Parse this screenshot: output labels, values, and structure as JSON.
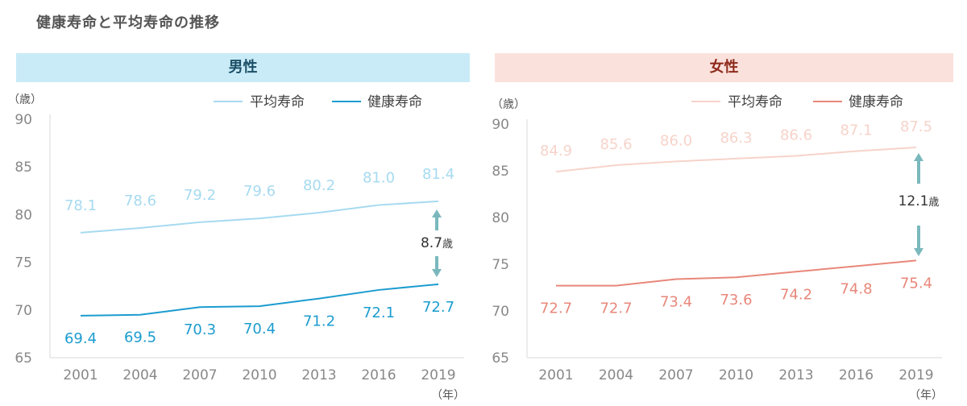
{
  "page": {
    "title": "健康寿命と平均寿命の推移"
  },
  "male_header": "男性",
  "female_header": "女性",
  "colors": {
    "male_avg": "#a6daf0",
    "male_health": "#1b9ccf",
    "female_avg": "#f7d3ca",
    "female_health": "#e8877a",
    "axis": "#d9d9d9",
    "tick_text": "#888888",
    "gap_arrow": "#7ab8bd"
  },
  "chart_data": [
    {
      "type": "line",
      "title": "男性",
      "ylabel": "（歳）",
      "xlabel": "（年）",
      "ylim": [
        65,
        90
      ],
      "yticks": [
        90,
        85,
        80,
        75,
        70,
        65
      ],
      "categories": [
        "2001",
        "2004",
        "2007",
        "2010",
        "2013",
        "2016",
        "2019"
      ],
      "series": [
        {
          "name": "平均寿命",
          "values": [
            78.1,
            78.6,
            79.2,
            79.6,
            80.2,
            81.0,
            81.4
          ],
          "labels": [
            "78.1",
            "78.6",
            "79.2",
            "79.6",
            "80.2",
            "81.0",
            "81.4"
          ]
        },
        {
          "name": "健康寿命",
          "values": [
            69.4,
            69.5,
            70.3,
            70.4,
            71.2,
            72.1,
            72.7
          ],
          "labels": [
            "69.4",
            "69.5",
            "70.3",
            "70.4",
            "71.2",
            "72.1",
            "72.7"
          ]
        }
      ],
      "annotation": {
        "value": "8.7",
        "unit": "歳"
      }
    },
    {
      "type": "line",
      "title": "女性",
      "ylabel": "（歳）",
      "xlabel": "（年）",
      "ylim": [
        65,
        90
      ],
      "yticks": [
        90,
        85,
        80,
        75,
        70,
        65
      ],
      "categories": [
        "2001",
        "2004",
        "2007",
        "2010",
        "2013",
        "2016",
        "2019"
      ],
      "series": [
        {
          "name": "平均寿命",
          "values": [
            84.9,
            85.6,
            86.0,
            86.3,
            86.6,
            87.1,
            87.5
          ],
          "labels": [
            "84.9",
            "85.6",
            "86.0",
            "86.3",
            "86.6",
            "87.1",
            "87.5"
          ]
        },
        {
          "name": "健康寿命",
          "values": [
            72.7,
            72.7,
            73.4,
            73.6,
            74.2,
            74.8,
            75.4
          ],
          "labels": [
            "72.7",
            "72.7",
            "73.4",
            "73.6",
            "74.2",
            "74.8",
            "75.4"
          ]
        }
      ],
      "annotation": {
        "value": "12.1",
        "unit": "歳"
      }
    }
  ]
}
